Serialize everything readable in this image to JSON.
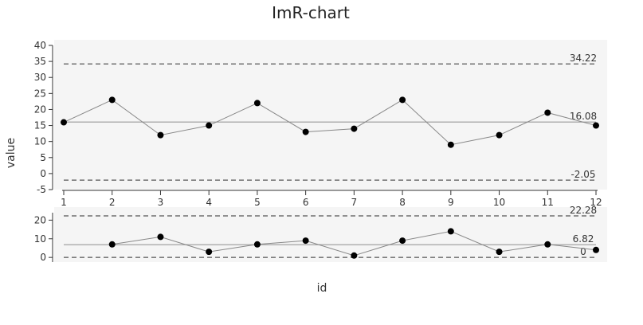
{
  "chart_data": [
    {
      "type": "line",
      "title": "ImR-chart",
      "y_label": "value",
      "x": [
        1,
        2,
        3,
        4,
        5,
        6,
        7,
        8,
        9,
        10,
        11,
        12
      ],
      "values": [
        16,
        23,
        12,
        15,
        22,
        13,
        14,
        23,
        9,
        12,
        19,
        15
      ],
      "xlim": [
        1,
        12
      ],
      "xticks": [
        1,
        2,
        3,
        4,
        5,
        6,
        7,
        8,
        9,
        10,
        11,
        12
      ],
      "ylim": [
        -5,
        40
      ],
      "yticks": [
        -5,
        0,
        5,
        10,
        15,
        20,
        25,
        30,
        35,
        40
      ],
      "ucl": 34.22,
      "center": 16.08,
      "lcl": -2.05,
      "color": "#000000",
      "line_color": "#888888"
    },
    {
      "type": "line",
      "x_label": "id",
      "x": [
        2,
        3,
        4,
        5,
        6,
        7,
        8,
        9,
        10,
        11,
        12
      ],
      "values": [
        7,
        11,
        3,
        7,
        9,
        1,
        9,
        14,
        3,
        7,
        4
      ],
      "xlim": [
        1,
        12
      ],
      "ylim": [
        -2.5,
        24
      ],
      "yticks": [
        0,
        10,
        20
      ],
      "ucl": 22.28,
      "center": 6.82,
      "lcl": 0,
      "color": "#000000",
      "line_color": "#888888"
    }
  ]
}
